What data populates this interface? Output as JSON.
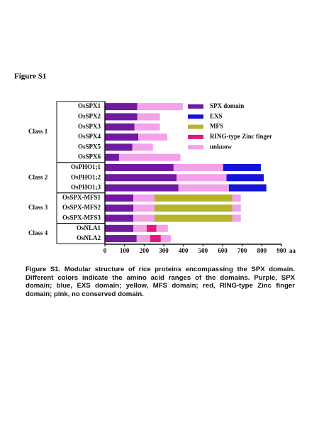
{
  "chart_data": {
    "type": "bar",
    "title": "Figure S1",
    "xlim": [
      0,
      900
    ],
    "xticks": [
      0,
      100,
      200,
      300,
      400,
      500,
      600,
      700,
      800,
      900
    ],
    "x_unit": "aa",
    "legend": [
      {
        "name": "SPX domain",
        "color": "#6f1aa0"
      },
      {
        "name": "EXS",
        "color": "#1414d8"
      },
      {
        "name": "MFS",
        "color": "#b4b42a"
      },
      {
        "name": "RING-type Zinc finger",
        "color": "#e0197c"
      },
      {
        "name": "unknow",
        "color": "#f4a0ea"
      }
    ],
    "classes": [
      {
        "label": "Class 1",
        "proteins": [
          {
            "name": "OsSPX1",
            "segments": [
              {
                "domain": 0,
                "length": 165
              },
              {
                "domain": 4,
                "length": 232
              }
            ]
          },
          {
            "name": "OsSPX2",
            "segments": [
              {
                "domain": 0,
                "length": 165
              },
              {
                "domain": 4,
                "length": 115
              }
            ]
          },
          {
            "name": "OsSPX3",
            "segments": [
              {
                "domain": 0,
                "length": 150
              },
              {
                "domain": 4,
                "length": 130
              }
            ]
          },
          {
            "name": "OsSPX4",
            "segments": [
              {
                "domain": 0,
                "length": 170
              },
              {
                "domain": 4,
                "length": 148
              }
            ]
          },
          {
            "name": "OsSPX5",
            "segments": [
              {
                "domain": 0,
                "length": 140
              },
              {
                "domain": 4,
                "length": 105
              }
            ]
          },
          {
            "name": "OsSPX6",
            "segments": [
              {
                "domain": 0,
                "length": 72
              },
              {
                "domain": 4,
                "length": 313
              }
            ]
          }
        ]
      },
      {
        "label": "Class 2",
        "proteins": [
          {
            "name": "OsPHO1;1",
            "segments": [
              {
                "domain": 0,
                "length": 350
              },
              {
                "domain": 4,
                "length": 253
              },
              {
                "domain": 1,
                "length": 192
              }
            ]
          },
          {
            "name": "OsPHO1;2",
            "segments": [
              {
                "domain": 0,
                "length": 365
              },
              {
                "domain": 4,
                "length": 255
              },
              {
                "domain": 1,
                "length": 190
              }
            ]
          },
          {
            "name": "OsPHO1;3",
            "segments": [
              {
                "domain": 0,
                "length": 375
              },
              {
                "domain": 4,
                "length": 257
              },
              {
                "domain": 1,
                "length": 191
              }
            ]
          }
        ]
      },
      {
        "label": "Class 3",
        "proteins": [
          {
            "name": "OsSPX-MFS1",
            "segments": [
              {
                "domain": 0,
                "length": 145
              },
              {
                "domain": 4,
                "length": 108
              },
              {
                "domain": 2,
                "length": 397
              },
              {
                "domain": 4,
                "length": 43
              }
            ]
          },
          {
            "name": "OsSPX-MFS2",
            "segments": [
              {
                "domain": 0,
                "length": 145
              },
              {
                "domain": 4,
                "length": 108
              },
              {
                "domain": 2,
                "length": 397
              },
              {
                "domain": 4,
                "length": 43
              }
            ]
          },
          {
            "name": "OsSPX-MFS3",
            "segments": [
              {
                "domain": 0,
                "length": 145
              },
              {
                "domain": 4,
                "length": 108
              },
              {
                "domain": 2,
                "length": 397
              },
              {
                "domain": 4,
                "length": 43
              }
            ]
          }
        ]
      },
      {
        "label": "Class 4",
        "proteins": [
          {
            "name": "OsNLA1",
            "segments": [
              {
                "domain": 0,
                "length": 145
              },
              {
                "domain": 4,
                "length": 68
              },
              {
                "domain": 3,
                "length": 50
              },
              {
                "domain": 4,
                "length": 58
              }
            ]
          },
          {
            "name": "OsNLA2",
            "segments": [
              {
                "domain": 0,
                "length": 162
              },
              {
                "domain": 4,
                "length": 69
              },
              {
                "domain": 3,
                "length": 54
              },
              {
                "domain": 4,
                "length": 51
              }
            ]
          }
        ]
      }
    ],
    "caption": "Figure S1. Modular structure of rice proteins encompassing the SPX domain. Different colors indicate the amino acid ranges of the domains. Purple, SPX domain; blue, EXS domain; yellow, MFS domain; red, RING-type Zinc finger domain; pink, no conserved domain."
  }
}
